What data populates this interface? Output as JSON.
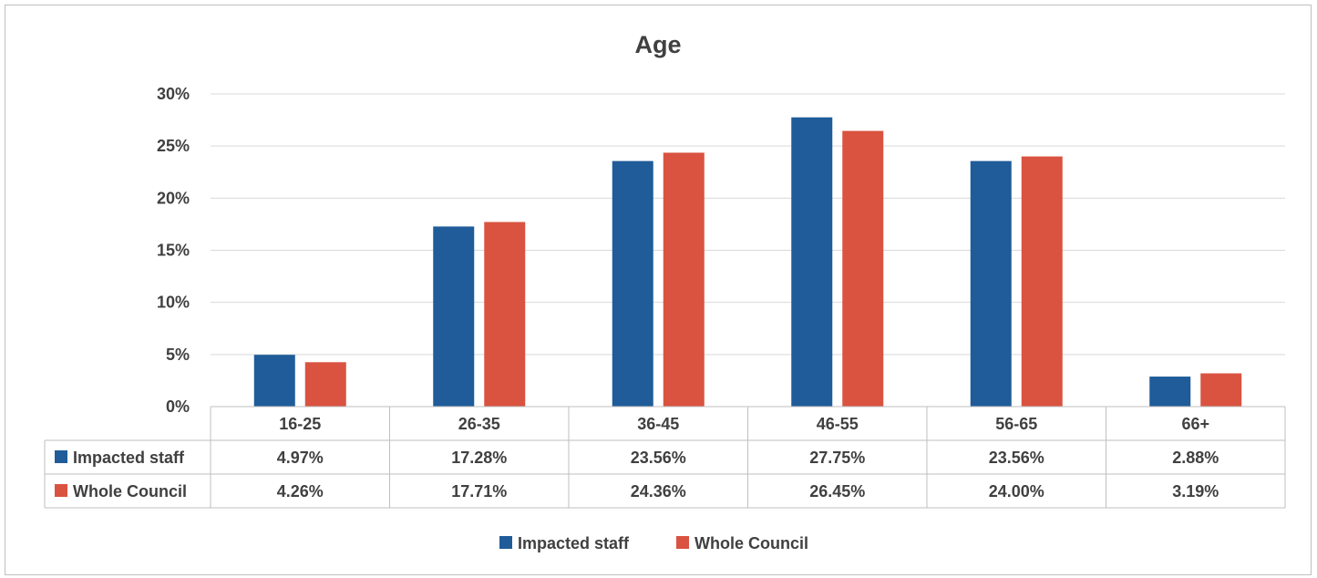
{
  "chart_data": {
    "type": "bar",
    "title": "Age",
    "categories": [
      "16-25",
      "26-35",
      "36-45",
      "46-55",
      "56-65",
      "66+"
    ],
    "series": [
      {
        "name": "Impacted staff",
        "color": "#1f5c99",
        "values": [
          4.97,
          17.28,
          23.56,
          27.75,
          23.56,
          2.88
        ],
        "labels": [
          "4.97%",
          "17.28%",
          "23.56%",
          "27.75%",
          "23.56%",
          "2.88%"
        ]
      },
      {
        "name": "Whole Council",
        "color": "#d95340",
        "values": [
          4.26,
          17.71,
          24.36,
          26.45,
          24.0,
          3.19
        ],
        "labels": [
          "4.26%",
          "17.71%",
          "24.36%",
          "26.45%",
          "24.00%",
          "3.19%"
        ]
      }
    ],
    "ylim": [
      0,
      30
    ],
    "yticks": [
      "0%",
      "5%",
      "10%",
      "15%",
      "20%",
      "25%",
      "30%"
    ],
    "ytick_values": [
      0,
      5,
      10,
      15,
      20,
      25,
      30
    ],
    "grid": true,
    "data_table": true,
    "legend_position": "bottom"
  }
}
